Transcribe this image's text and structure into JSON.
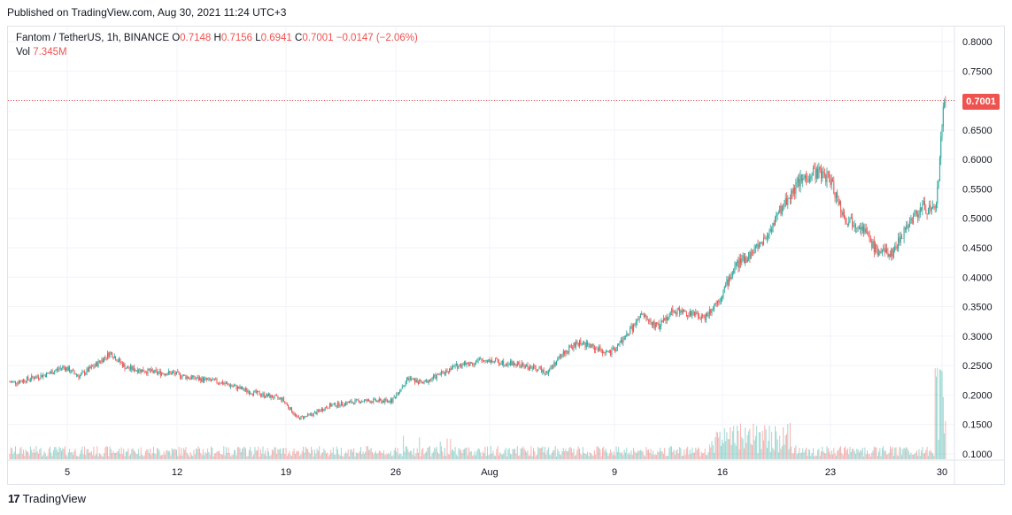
{
  "published": "Published on TradingView.com, Aug 30, 2021 11:24 UTC+3",
  "legend": {
    "symbol": "Fantom / TetherUS, 1h, BINANCE",
    "o_label": "O",
    "o": "0.7148",
    "h_label": "H",
    "h": "0.7156",
    "l_label": "L",
    "l": "0.6941",
    "c_label": "C",
    "c": "0.7001",
    "change": "−0.0147 (−2.06%)",
    "vol_label": "Vol",
    "vol": "7.345M"
  },
  "last_price": "0.7001",
  "footer": {
    "logo": "17",
    "brand": "TradingView"
  },
  "colors": {
    "up": "#26a69a",
    "down": "#ef5350",
    "grid": "#f0f3fa",
    "text": "#131722"
  },
  "chart_data": {
    "type": "candlestick",
    "title": "Fantom / TetherUS, 1h, BINANCE",
    "x_ticks": [
      "5",
      "12",
      "19",
      "26",
      "Aug",
      "9",
      "16",
      "23",
      "30"
    ],
    "y_ticks": [
      "0.8000",
      "0.7500",
      "0.7000",
      "0.6500",
      "0.6000",
      "0.5500",
      "0.5000",
      "0.4500",
      "0.4000",
      "0.3500",
      "0.3000",
      "0.2500",
      "0.2000",
      "0.1500",
      "0.1000"
    ],
    "ylim": [
      0.1,
      0.8
    ],
    "price_path": [
      [
        "Jul 2",
        0.222
      ],
      [
        "Jul 4",
        0.236
      ],
      [
        "Jul 5",
        0.248
      ],
      [
        "Jul 6",
        0.232
      ],
      [
        "Jul 7",
        0.25
      ],
      [
        "Jul 8",
        0.272
      ],
      [
        "Jul 9",
        0.246
      ],
      [
        "Jul 11",
        0.238
      ],
      [
        "Jul 12",
        0.237
      ],
      [
        "Jul 13",
        0.23
      ],
      [
        "Jul 15",
        0.222
      ],
      [
        "Jul 17",
        0.205
      ],
      [
        "Jul 19",
        0.193
      ],
      [
        "Jul 20",
        0.16
      ],
      [
        "Jul 21",
        0.168
      ],
      [
        "Jul 22",
        0.182
      ],
      [
        "Jul 24",
        0.19
      ],
      [
        "Jul 26",
        0.19
      ],
      [
        "Jul 27",
        0.228
      ],
      [
        "Jul 28",
        0.22
      ],
      [
        "Jul 30",
        0.248
      ],
      [
        "Aug 1",
        0.26
      ],
      [
        "Aug 3",
        0.252
      ],
      [
        "Aug 5",
        0.24
      ],
      [
        "Aug 6",
        0.272
      ],
      [
        "Aug 7",
        0.29
      ],
      [
        "Aug 9",
        0.27
      ],
      [
        "Aug 10",
        0.3
      ],
      [
        "Aug 11",
        0.335
      ],
      [
        "Aug 12",
        0.315
      ],
      [
        "Aug 13",
        0.345
      ],
      [
        "Aug 15",
        0.332
      ],
      [
        "Aug 16",
        0.365
      ],
      [
        "Aug 17",
        0.42
      ],
      [
        "Aug 18",
        0.44
      ],
      [
        "Aug 19",
        0.47
      ],
      [
        "Aug 20",
        0.52
      ],
      [
        "Aug 21",
        0.56
      ],
      [
        "Aug 22",
        0.58
      ],
      [
        "Aug 23",
        0.57
      ],
      [
        "Aug 24",
        0.5
      ],
      [
        "Aug 25",
        0.49
      ],
      [
        "Aug 26",
        0.445
      ],
      [
        "Aug 27",
        0.44
      ],
      [
        "Aug 28",
        0.49
      ],
      [
        "Aug 29",
        0.52
      ],
      [
        "Aug 29 18:00",
        0.51
      ],
      [
        "Aug 30 00:00",
        0.56
      ],
      [
        "Aug 30 06:00",
        0.68
      ],
      [
        "Aug 30 10:00",
        0.715
      ],
      [
        "Aug 30 11:00",
        0.7001
      ]
    ],
    "volume_note": "Vol 7.345M"
  }
}
